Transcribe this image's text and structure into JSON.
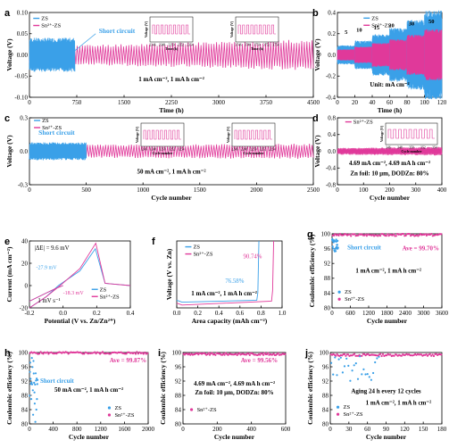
{
  "colors": {
    "zs": "#3aa0e8",
    "sn": "#e0399a",
    "ann": "#e0399a",
    "blue": "#3aa0e8"
  },
  "chart_data": [
    {
      "id": "a",
      "type": "line",
      "panel_label": "a",
      "xlabel": "Time (h)",
      "ylabel": "Voltage (V)",
      "xlim": [
        0,
        4500
      ],
      "ylim": [
        -0.1,
        0.1
      ],
      "xticks": [
        "0",
        "750",
        "1500",
        "2250",
        "3000",
        "3750",
        "4500"
      ],
      "yticks": [
        "-0.10",
        "-0.05",
        "0.00",
        "0.05",
        "0.10"
      ],
      "legend": [
        "ZS",
        "Sn²⁺-ZS"
      ],
      "annotations": [
        "Short circuit"
      ],
      "condition": "1 mA cm⁻², 1 mA h cm⁻²",
      "insets": [
        {
          "xticks": [
            "2346",
            "2348",
            "2350",
            "2352",
            "2354"
          ],
          "xlabel": "Time (h)",
          "ylabel": "Voltage (V)"
        },
        {
          "xticks": [
            "3746",
            "3748",
            "3750",
            "3752",
            "3754"
          ],
          "xlabel": "Time (h)",
          "ylabel": "Voltage (V)"
        }
      ],
      "series": [
        {
          "name": "ZS",
          "x": [
            0,
            720
          ],
          "amplitude": 0.035
        },
        {
          "name": "Sn²⁺-ZS",
          "x": [
            0,
            4500
          ],
          "amplitude": [
            0.018,
            0.032
          ]
        }
      ]
    },
    {
      "id": "b",
      "type": "line",
      "panel_label": "b",
      "xlabel": "Time (h)",
      "ylabel": "Voltage (V)",
      "xlim": [
        0,
        120
      ],
      "ylim": [
        -0.4,
        0.4
      ],
      "xticks": [
        "0",
        "20",
        "40",
        "60",
        "80",
        "100",
        "120"
      ],
      "yticks": [
        "-0.4",
        "-0.2",
        "0.0",
        "0.2",
        "0.4"
      ],
      "legend": [
        "ZS",
        "Sn²⁺-ZS"
      ],
      "rate_labels": [
        "5",
        "10",
        "15",
        "20",
        "30",
        "50"
      ],
      "condition": "Unit: mA cm⁻²"
    },
    {
      "id": "c",
      "type": "line",
      "panel_label": "c",
      "xlabel": "Cycle number",
      "ylabel": "Voltage (V)",
      "xlim": [
        0,
        2500
      ],
      "ylim": [
        -0.3,
        0.3
      ],
      "xticks": [
        "0",
        "500",
        "1000",
        "1500",
        "2000",
        "2500"
      ],
      "yticks": [
        "-0.3",
        "0.0",
        "0.3"
      ],
      "legend": [
        "ZS",
        "Sn²⁺-ZS"
      ],
      "annotations": [
        "Short circuit"
      ],
      "condition": "50 mA cm⁻², 1 mA h cm⁻²",
      "insets": [
        {
          "xticks": [
            "1246",
            "1248",
            "1250",
            "1252",
            "1254"
          ],
          "xlabel": "Cycle number",
          "ylabel": "Voltage (V)"
        },
        {
          "xticks": [
            "2246",
            "2248",
            "2250",
            "2252",
            "2254"
          ],
          "xlabel": "Cycle number",
          "ylabel": "Voltage (V)"
        }
      ]
    },
    {
      "id": "d",
      "type": "line",
      "panel_label": "d",
      "xlabel": "Cycle number",
      "ylabel": "Voltage (V)",
      "xlim": [
        0,
        400
      ],
      "ylim": [
        -0.8,
        0.8
      ],
      "xticks": [
        "0",
        "100",
        "200",
        "300",
        "400"
      ],
      "yticks": [
        "-0.8",
        "-0.4",
        "0.0",
        "0.4",
        "0.8"
      ],
      "legend": [
        "Sn²⁺-ZS"
      ],
      "condition_lines": [
        "4.69 mA cm⁻², 4.69 mA h cm⁻²",
        "Zn foil: 10 μm, DODZn: 80%"
      ],
      "insets": [
        {
          "xticks": [
            "346",
            "348",
            "350",
            "352",
            "354"
          ],
          "xlabel": "Cycle number",
          "ylabel": "Voltage (V)"
        }
      ]
    },
    {
      "id": "e",
      "type": "line",
      "panel_label": "e",
      "xlabel": "Potential (V vs. Zn/Zn²⁺)",
      "ylabel": "Current (mA cm⁻²)",
      "xlim": [
        -0.2,
        0.4
      ],
      "ylim": [
        -20,
        40
      ],
      "xticks": [
        "-0.2",
        "0.0",
        "0.2",
        "0.4"
      ],
      "yticks": [
        "-20",
        "0",
        "20",
        "40"
      ],
      "legend": [
        "ZS",
        "Sn²⁺-ZS"
      ],
      "annotations": [
        "|ΔE| = 9.6 mV",
        "-27.9 mV",
        "-18.3 mV"
      ],
      "condition": "1 mV s⁻¹"
    },
    {
      "id": "f",
      "type": "line",
      "panel_label": "f",
      "xlabel": "Area capacity (mAh cm⁻²)",
      "ylabel": "Voltage (V vs. Zn)",
      "xlim": [
        0.0,
        1.0
      ],
      "ylim": [
        -0.1,
        0.6
      ],
      "xticks": [
        "0.0",
        "0.2",
        "0.4",
        "0.6",
        "0.8",
        "1.0"
      ],
      "legend": [
        "ZS",
        "Sn²⁺-ZS"
      ],
      "annotations": [
        "90.74%",
        "76.58%"
      ],
      "condition": "1 mA cm⁻², 1 mA h cm⁻²"
    },
    {
      "id": "g",
      "type": "scatter",
      "panel_label": "g",
      "xlabel": "Cycle number",
      "ylabel": "Coulombic efficiency (%)",
      "xlim": [
        0,
        3600
      ],
      "ylim": [
        80,
        100
      ],
      "xticks": [
        "0",
        "600",
        "1200",
        "1800",
        "2400",
        "3000",
        "3600"
      ],
      "yticks": [
        "80",
        "84",
        "88",
        "92",
        "96",
        "100"
      ],
      "legend": [
        "ZS",
        "Sn²⁺-ZS"
      ],
      "annotations": [
        "Short circuit",
        "Ave = 99.70%"
      ],
      "condition": "1 mA cm⁻², 1 mA h cm⁻²",
      "series": [
        {
          "name": "Sn²⁺-ZS",
          "ave": 99.7
        }
      ]
    },
    {
      "id": "h",
      "type": "scatter",
      "panel_label": "h",
      "xlabel": "Cycle number",
      "ylabel": "Coulombic efficiency (%)",
      "xlim": [
        0,
        2000
      ],
      "ylim": [
        80,
        100
      ],
      "xticks": [
        "0",
        "400",
        "800",
        "1200",
        "1600",
        "2000"
      ],
      "yticks": [
        "80",
        "84",
        "88",
        "92",
        "96",
        "100"
      ],
      "legend": [
        "ZS",
        "Sn²⁺-ZS"
      ],
      "annotations": [
        "Short circuit",
        "Ave = 99.87%"
      ],
      "condition": "50 mA cm⁻², 1 mA h cm⁻²",
      "series": [
        {
          "name": "Sn²⁺-ZS",
          "ave": 99.87
        }
      ]
    },
    {
      "id": "i",
      "type": "scatter",
      "panel_label": "i",
      "xlabel": "Cycle number",
      "ylabel": "Coulombic efficiency (%)",
      "xlim": [
        0,
        700
      ],
      "ylim": [
        80,
        100
      ],
      "xticks": [
        "0",
        "200",
        "400",
        "600"
      ],
      "yticks": [
        "80",
        "84",
        "88",
        "92",
        "96",
        "100"
      ],
      "legend": [
        "Sn²⁺-ZS"
      ],
      "annotations": [
        "Ave = 99.56%"
      ],
      "condition_lines": [
        "4.69 mA cm⁻², 4.69 mA h cm⁻²",
        "Zn foil: 10 μm, DODZn: 80%"
      ],
      "series": [
        {
          "name": "Sn²⁺-ZS",
          "ave": 99.56
        }
      ]
    },
    {
      "id": "j",
      "type": "scatter",
      "panel_label": "j",
      "xlabel": "Cycle number",
      "ylabel": "Coulombic efficiency (%)",
      "xlim": [
        0,
        180
      ],
      "ylim": [
        80,
        100
      ],
      "xticks": [
        "0",
        "30",
        "60",
        "90",
        "120",
        "150",
        "180"
      ],
      "yticks": [
        "80",
        "84",
        "88",
        "92",
        "96",
        "100"
      ],
      "legend": [
        "ZS",
        "Sn²⁺-ZS"
      ],
      "condition_lines": [
        "Aging 24 h every 12 cycles",
        "1 mA cm⁻², 1 mA h cm⁻²"
      ]
    }
  ]
}
